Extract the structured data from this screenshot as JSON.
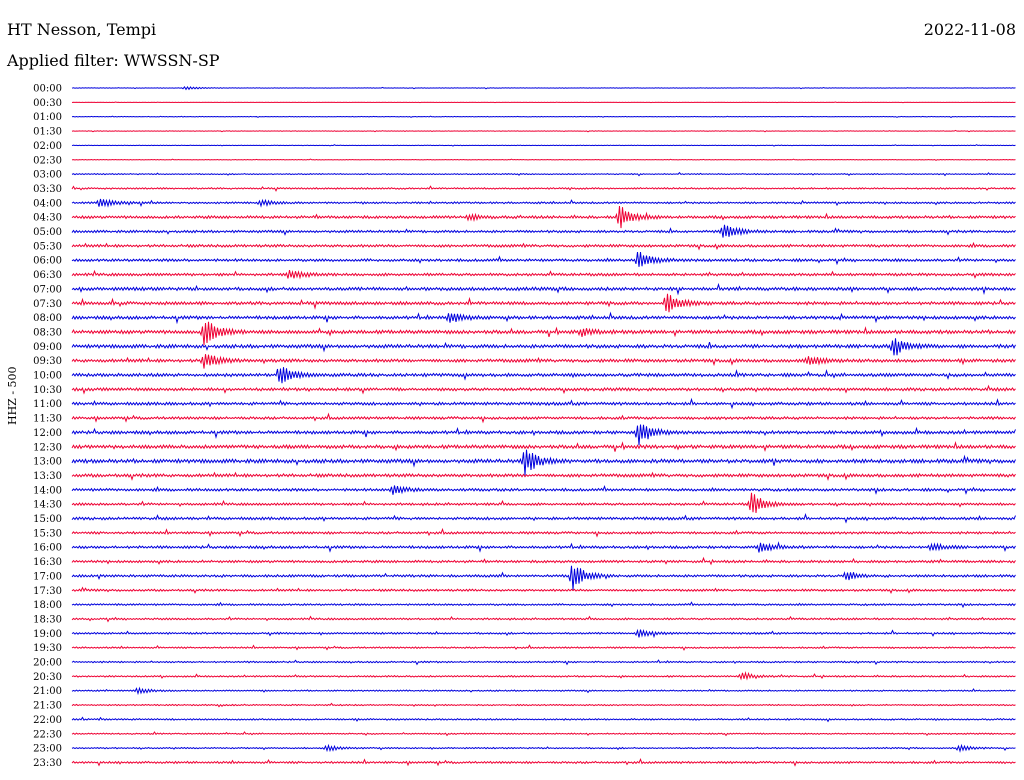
{
  "header": {
    "station": "HT Nesson, Tempi",
    "filter": "Applied filter: WWSSN-SP",
    "date": "2022-11-08"
  },
  "channel_label": "HHZ - 500",
  "colors": {
    "even_trace": "#0000dd",
    "odd_trace": "#ee0033"
  },
  "chart_data": {
    "type": "line",
    "title": "HT Nesson, Tempi",
    "subtitle": "Applied filter: WWSSN-SP",
    "date": "2022-11-08",
    "ylabel": "HHZ - 500",
    "row_labels": [
      "00:00",
      "00:30",
      "01:00",
      "01:30",
      "02:00",
      "02:30",
      "03:00",
      "03:30",
      "04:00",
      "04:30",
      "05:00",
      "05:30",
      "06:00",
      "06:30",
      "07:00",
      "07:30",
      "08:00",
      "08:30",
      "09:00",
      "09:30",
      "10:00",
      "10:30",
      "11:00",
      "11:30",
      "12:00",
      "12:30",
      "13:00",
      "13:30",
      "14:00",
      "14:30",
      "15:00",
      "15:30",
      "16:00",
      "16:30",
      "17:00",
      "17:30",
      "18:00",
      "18:30",
      "19:00",
      "19:30",
      "20:00",
      "20:30",
      "21:00",
      "21:30",
      "22:00",
      "22:30",
      "23:00",
      "23:30"
    ],
    "noise_level": [
      0.2,
      0.1,
      0.2,
      0.2,
      0.2,
      0.2,
      0.4,
      0.6,
      0.7,
      1.0,
      0.9,
      1.0,
      1.0,
      1.0,
      1.2,
      1.2,
      1.2,
      1.3,
      1.3,
      1.2,
      1.2,
      1.1,
      1.1,
      1.0,
      1.2,
      1.3,
      1.4,
      1.2,
      1.0,
      0.9,
      1.0,
      0.9,
      1.0,
      0.9,
      0.9,
      0.8,
      0.7,
      0.7,
      0.7,
      0.6,
      0.6,
      0.6,
      0.5,
      0.5,
      0.6,
      0.5,
      0.5,
      0.8
    ],
    "events": [
      {
        "row": 0,
        "x": 0.12,
        "amp": 2
      },
      {
        "row": 8,
        "x": 0.03,
        "amp": 5
      },
      {
        "row": 8,
        "x": 0.2,
        "amp": 3
      },
      {
        "row": 9,
        "x": 0.58,
        "amp": 12
      },
      {
        "row": 9,
        "x": 0.42,
        "amp": 3
      },
      {
        "row": 10,
        "x": 0.69,
        "amp": 10
      },
      {
        "row": 12,
        "x": 0.6,
        "amp": 10
      },
      {
        "row": 13,
        "x": 0.23,
        "amp": 5
      },
      {
        "row": 15,
        "x": 0.63,
        "amp": 11
      },
      {
        "row": 16,
        "x": 0.4,
        "amp": 6
      },
      {
        "row": 17,
        "x": 0.14,
        "amp": 15
      },
      {
        "row": 17,
        "x": 0.54,
        "amp": 4
      },
      {
        "row": 18,
        "x": 0.87,
        "amp": 9
      },
      {
        "row": 19,
        "x": 0.14,
        "amp": 8
      },
      {
        "row": 19,
        "x": 0.78,
        "amp": 5
      },
      {
        "row": 20,
        "x": 0.22,
        "amp": 11
      },
      {
        "row": 24,
        "x": 0.6,
        "amp": 13
      },
      {
        "row": 26,
        "x": 0.48,
        "amp": 14
      },
      {
        "row": 28,
        "x": 0.34,
        "amp": 5
      },
      {
        "row": 29,
        "x": 0.72,
        "amp": 12
      },
      {
        "row": 32,
        "x": 0.73,
        "amp": 5
      },
      {
        "row": 32,
        "x": 0.91,
        "amp": 4
      },
      {
        "row": 34,
        "x": 0.53,
        "amp": 14
      },
      {
        "row": 34,
        "x": 0.82,
        "amp": 4
      },
      {
        "row": 38,
        "x": 0.6,
        "amp": 4
      },
      {
        "row": 41,
        "x": 0.71,
        "amp": 4
      },
      {
        "row": 42,
        "x": 0.07,
        "amp": 3
      },
      {
        "row": 46,
        "x": 0.27,
        "amp": 3
      },
      {
        "row": 46,
        "x": 0.94,
        "amp": 3
      }
    ]
  }
}
